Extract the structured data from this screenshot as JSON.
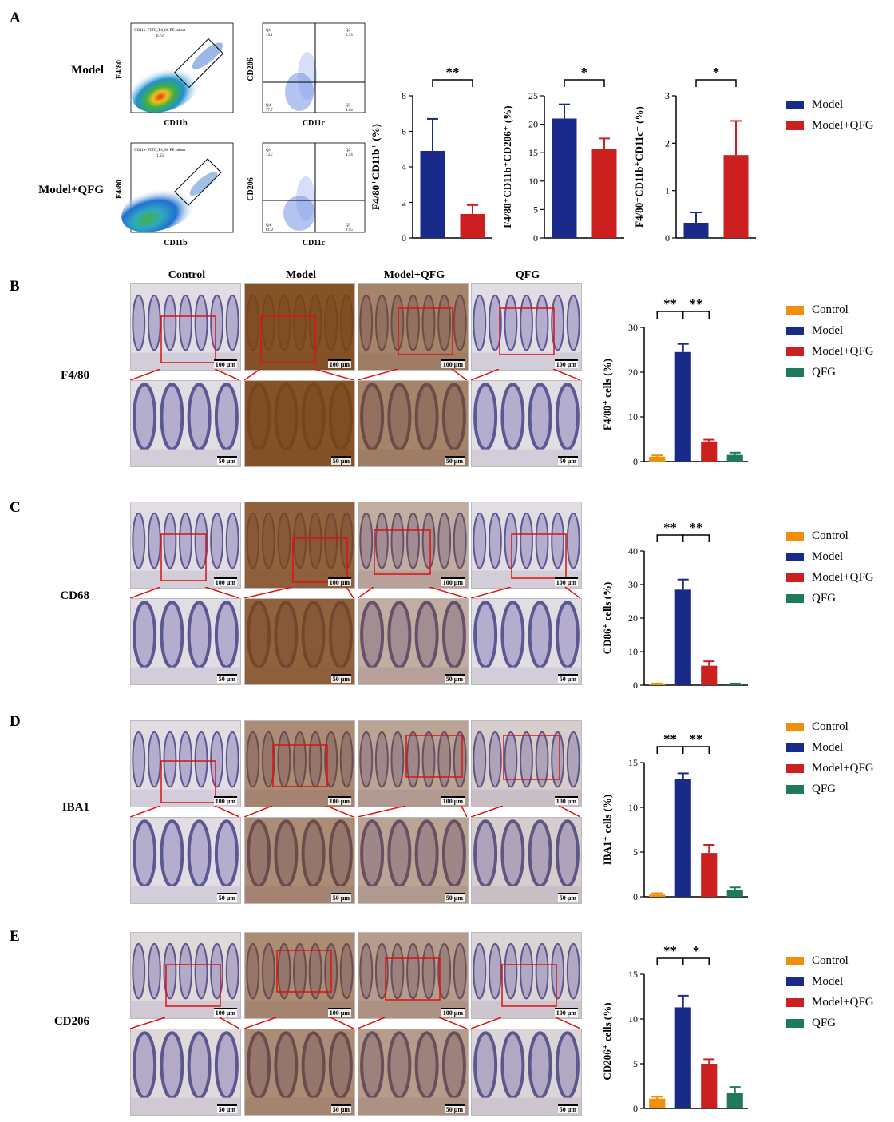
{
  "panels": {
    "A": {
      "letter": "A",
      "row_labels": [
        "Model",
        "Model+QFG"
      ],
      "flow": [
        {
          "gate_title": "CD11b- FITC_F4_80 PE subset",
          "gate_value": "6.72",
          "x_axis": "CD11b",
          "y_axis": "F4/80",
          "quad_x_axis": "CD11c",
          "quad_y_axis": "CD206",
          "q1": "Q1\n19.1",
          "q2": "Q2\n2.13",
          "q3": "Q3\n1.04",
          "q4": "Q4\n77.7"
        },
        {
          "gate_title": "CD11b- FITC_F4_80 PE subset",
          "gate_value": "1.63",
          "x_axis": "CD11b",
          "y_axis": "F4/80",
          "quad_x_axis": "CD11c",
          "quad_y_axis": "CD206",
          "q1": "Q1\n12.7",
          "q2": "Q2\n1.44",
          "q3": "Q3\n2.95",
          "q4": "Q4\n81.9"
        }
      ],
      "legend": [
        {
          "label": "Model",
          "color": "#1a2a8a"
        },
        {
          "label": "Model+QFG",
          "color": "#cc1f1f"
        }
      ]
    },
    "B": {
      "letter": "B",
      "row_label": "F4/80"
    },
    "C": {
      "letter": "C",
      "row_label": "CD68"
    },
    "D": {
      "letter": "D",
      "row_label": "IBA1"
    },
    "E": {
      "letter": "E",
      "row_label": "CD206"
    },
    "column_headers": [
      "Control",
      "Model",
      "Model+QFG",
      "QFG"
    ],
    "scale_top": "100 μm",
    "scale_bottom": "50 μm",
    "legend4": [
      {
        "label": "Control",
        "color": "#f0900a"
      },
      {
        "label": "Model",
        "color": "#1a2a8a"
      },
      {
        "label": "Model+QFG",
        "color": "#cc1f1f"
      },
      {
        "label": "QFG",
        "color": "#1f7a5c"
      }
    ]
  },
  "chart_data": [
    {
      "type": "bar",
      "panel": "A",
      "categories": [
        "Model",
        "Model+QFG"
      ],
      "values": [
        4.9,
        1.35
      ],
      "errors": [
        1.8,
        0.5
      ],
      "ylabel": "F4/80⁺CD11b⁺ (%)",
      "ylim": [
        0,
        8
      ],
      "yticks": [
        0,
        2,
        4,
        6,
        8
      ],
      "significance": [
        {
          "between": [
            0,
            1
          ],
          "label": "**"
        }
      ],
      "colors": [
        "#1a2a8a",
        "#cc1f1f"
      ]
    },
    {
      "type": "bar",
      "panel": "A",
      "categories": [
        "Model",
        "Model+QFG"
      ],
      "values": [
        21,
        15.7
      ],
      "errors": [
        2.5,
        1.8
      ],
      "ylabel": "F4/80⁺CD11b⁺CD206⁺ (%)",
      "ylim": [
        0,
        25
      ],
      "yticks": [
        0,
        5,
        10,
        15,
        20,
        25
      ],
      "significance": [
        {
          "between": [
            0,
            1
          ],
          "label": "*"
        }
      ],
      "colors": [
        "#1a2a8a",
        "#cc1f1f"
      ]
    },
    {
      "type": "bar",
      "panel": "A",
      "categories": [
        "Model",
        "Model+QFG"
      ],
      "values": [
        0.32,
        1.75
      ],
      "errors": [
        0.22,
        0.72
      ],
      "ylabel": "F4/80⁺CD11b⁺CD11c⁺ (%)",
      "ylim": [
        0,
        3
      ],
      "yticks": [
        0,
        1,
        2,
        3
      ],
      "significance": [
        {
          "between": [
            0,
            1
          ],
          "label": "*"
        }
      ],
      "colors": [
        "#1a2a8a",
        "#cc1f1f"
      ]
    },
    {
      "type": "bar",
      "panel": "B",
      "categories": [
        "Control",
        "Model",
        "Model+QFG",
        "QFG"
      ],
      "values": [
        1.1,
        24.5,
        4.5,
        1.5
      ],
      "errors": [
        0.3,
        1.8,
        0.4,
        0.5
      ],
      "ylabel": "F4/80⁺ cells (%)",
      "ylim": [
        0,
        30
      ],
      "yticks": [
        0,
        10,
        20,
        30
      ],
      "significance": [
        {
          "between": [
            0,
            1
          ],
          "label": "**"
        },
        {
          "between": [
            1,
            2
          ],
          "label": "**"
        }
      ],
      "colors": [
        "#f0900a",
        "#1a2a8a",
        "#cc1f1f",
        "#1f7a5c"
      ]
    },
    {
      "type": "bar",
      "panel": "C",
      "categories": [
        "Control",
        "Model",
        "Model+QFG",
        "QFG"
      ],
      "values": [
        0.3,
        28.5,
        5.8,
        0.3
      ],
      "errors": [
        0.2,
        3.0,
        1.3,
        0.2
      ],
      "ylabel": "CD86⁺ cells (%)",
      "ylim": [
        0,
        40
      ],
      "yticks": [
        0,
        10,
        20,
        30,
        40
      ],
      "significance": [
        {
          "between": [
            0,
            1
          ],
          "label": "**"
        },
        {
          "between": [
            1,
            2
          ],
          "label": "**"
        }
      ],
      "colors": [
        "#f0900a",
        "#1a2a8a",
        "#cc1f1f",
        "#1f7a5c"
      ]
    },
    {
      "type": "bar",
      "panel": "D",
      "categories": [
        "Control",
        "Model",
        "Model+QFG",
        "QFG"
      ],
      "values": [
        0.25,
        13.2,
        4.9,
        0.75
      ],
      "errors": [
        0.15,
        0.6,
        0.9,
        0.3
      ],
      "ylabel": "IBA1⁺ cells (%)",
      "ylim": [
        0,
        15
      ],
      "yticks": [
        0,
        5,
        10,
        15
      ],
      "significance": [
        {
          "between": [
            0,
            1
          ],
          "label": "**"
        },
        {
          "between": [
            1,
            2
          ],
          "label": "**"
        }
      ],
      "colors": [
        "#f0900a",
        "#1a2a8a",
        "#cc1f1f",
        "#1f7a5c"
      ]
    },
    {
      "type": "bar",
      "panel": "E",
      "categories": [
        "Control",
        "Model",
        "Model+QFG",
        "QFG"
      ],
      "values": [
        1.1,
        11.3,
        5.0,
        1.7
      ],
      "errors": [
        0.2,
        1.3,
        0.5,
        0.7
      ],
      "ylabel": "CD206⁺ cells (%)",
      "ylim": [
        0,
        15
      ],
      "yticks": [
        0,
        5,
        10,
        15
      ],
      "significance": [
        {
          "between": [
            0,
            1
          ],
          "label": "**"
        },
        {
          "between": [
            1,
            2
          ],
          "label": "*"
        }
      ],
      "colors": [
        "#f0900a",
        "#1a2a8a",
        "#cc1f1f",
        "#1f7a5c"
      ]
    }
  ]
}
